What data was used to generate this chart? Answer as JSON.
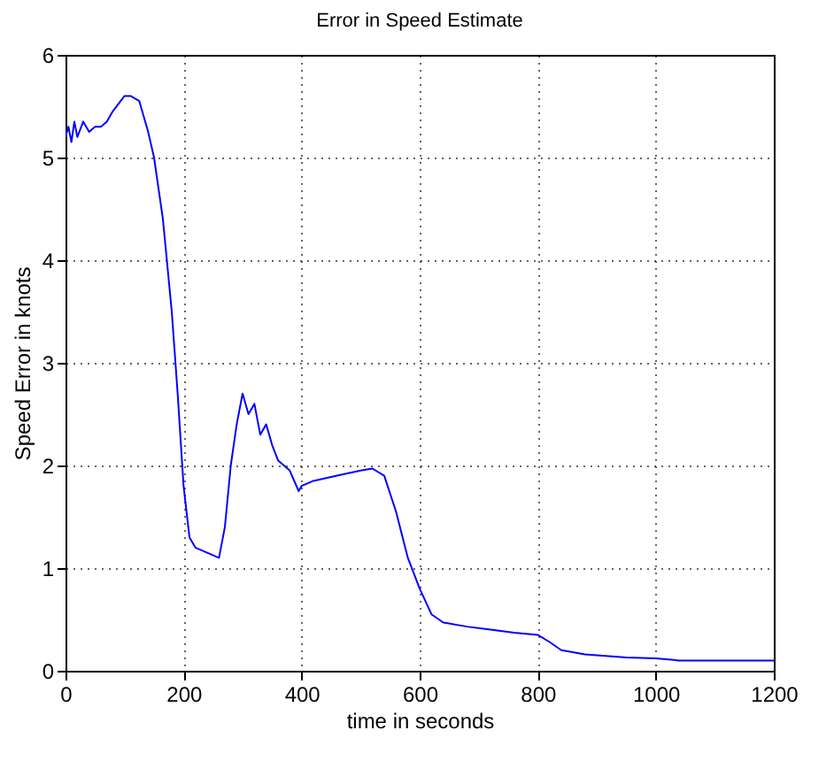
{
  "chart_data": {
    "type": "line",
    "title": "Error in Speed Estimate",
    "xlabel": "time in seconds",
    "ylabel": "Speed Error in knots",
    "x": [
      0,
      5,
      10,
      15,
      20,
      30,
      40,
      50,
      60,
      70,
      80,
      100,
      110,
      125,
      140,
      150,
      165,
      180,
      190,
      200,
      210,
      220,
      240,
      260,
      270,
      280,
      290,
      300,
      310,
      320,
      330,
      340,
      350,
      360,
      380,
      395,
      400,
      420,
      460,
      500,
      520,
      540,
      560,
      580,
      600,
      620,
      640,
      680,
      720,
      760,
      800,
      820,
      840,
      880,
      950,
      1000,
      1040,
      1200
    ],
    "series": [
      {
        "color": "#0000ff",
        "values": [
          5.2,
          5.3,
          5.15,
          5.35,
          5.2,
          5.35,
          5.25,
          5.3,
          5.3,
          5.35,
          5.45,
          5.6,
          5.6,
          5.55,
          5.25,
          5.0,
          4.4,
          3.5,
          2.7,
          1.8,
          1.3,
          1.2,
          1.15,
          1.1,
          1.4,
          2.0,
          2.4,
          2.7,
          2.5,
          2.6,
          2.3,
          2.4,
          2.2,
          2.05,
          1.95,
          1.75,
          1.8,
          1.85,
          1.9,
          1.95,
          1.97,
          1.9,
          1.55,
          1.1,
          0.8,
          0.55,
          0.47,
          0.43,
          0.4,
          0.37,
          0.35,
          0.28,
          0.2,
          0.16,
          0.13,
          0.12,
          0.1,
          0.1
        ]
      }
    ],
    "xlim": [
      0,
      1200
    ],
    "xticks": [
      0,
      200,
      400,
      600,
      800,
      1000,
      1200
    ],
    "ylim": [
      0,
      6
    ],
    "yticks": [
      0,
      1,
      2,
      3,
      4,
      5,
      6
    ],
    "grid": true
  }
}
